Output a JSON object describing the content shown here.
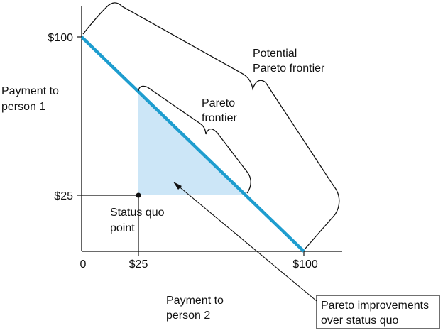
{
  "axes": {
    "x_label": [
      "Payment to",
      "person 2"
    ],
    "y_label": [
      "Payment to",
      "person 1"
    ],
    "x_ticks": [
      "0",
      "$25",
      "$100"
    ],
    "y_ticks": [
      "$100",
      "$25"
    ]
  },
  "annotations": {
    "status_quo": [
      "Status quo",
      "point"
    ],
    "pareto_frontier": [
      "Pareto",
      "frontier"
    ],
    "potential_pareto_frontier": [
      "Potential",
      "Pareto frontier"
    ],
    "pareto_improvements": [
      "Pareto improvements",
      "over status quo"
    ]
  },
  "colors": {
    "frontier_line": "#1e9dcf",
    "improvement_region": "#cce6f7",
    "ink": "#111111"
  }
}
